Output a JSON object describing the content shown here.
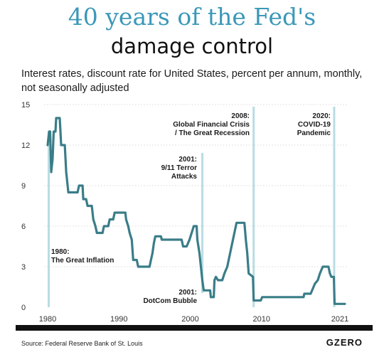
{
  "header": {
    "title_line1": "40 years of the Fed's",
    "title_line2": "damage control",
    "subtitle": "Interest rates, discount rate for United States, percent per annum, monthly, not seasonally adjusted"
  },
  "footer": {
    "source": "Source: Federal Reserve Bank of St. Louis",
    "logo": "GZERO"
  },
  "colors": {
    "line": "#3a7d88",
    "annotation_line": "#b9dde2",
    "grid": "#d9d9d9",
    "title": "#3b98b8"
  },
  "chart_data": {
    "type": "line",
    "xlim": [
      1980,
      2022
    ],
    "ylim": [
      0,
      15
    ],
    "x_ticks": [
      1980,
      1990,
      2000,
      2010,
      2021
    ],
    "y_ticks": [
      0,
      3,
      6,
      9,
      12,
      15
    ],
    "grid": "horizontal dotted",
    "series": [
      {
        "points": [
          [
            1980.0,
            12.0
          ],
          [
            1980.2,
            13.0
          ],
          [
            1980.35,
            13.0
          ],
          [
            1980.5,
            10.0
          ],
          [
            1980.7,
            11.0
          ],
          [
            1980.85,
            13.0
          ],
          [
            1981.1,
            13.0
          ],
          [
            1981.2,
            14.0
          ],
          [
            1981.7,
            14.0
          ],
          [
            1981.9,
            12.0
          ],
          [
            1982.4,
            12.0
          ],
          [
            1982.6,
            10.0
          ],
          [
            1982.9,
            8.5
          ],
          [
            1984.2,
            8.5
          ],
          [
            1984.4,
            9.0
          ],
          [
            1984.9,
            9.0
          ],
          [
            1985.0,
            8.0
          ],
          [
            1985.4,
            8.0
          ],
          [
            1985.6,
            7.5
          ],
          [
            1986.2,
            7.5
          ],
          [
            1986.4,
            6.5
          ],
          [
            1986.7,
            6.0
          ],
          [
            1986.9,
            5.5
          ],
          [
            1987.7,
            5.5
          ],
          [
            1987.9,
            6.0
          ],
          [
            1988.5,
            6.0
          ],
          [
            1988.7,
            6.5
          ],
          [
            1989.2,
            6.5
          ],
          [
            1989.4,
            7.0
          ],
          [
            1990.9,
            7.0
          ],
          [
            1991.0,
            6.5
          ],
          [
            1991.3,
            6.0
          ],
          [
            1991.5,
            5.5
          ],
          [
            1991.8,
            5.0
          ],
          [
            1992.0,
            3.5
          ],
          [
            1992.5,
            3.5
          ],
          [
            1992.7,
            3.0
          ],
          [
            1994.3,
            3.0
          ],
          [
            1994.5,
            3.5
          ],
          [
            1994.7,
            4.0
          ],
          [
            1994.9,
            4.75
          ],
          [
            1995.1,
            5.25
          ],
          [
            1995.9,
            5.25
          ],
          [
            1996.0,
            5.0
          ],
          [
            1998.8,
            5.0
          ],
          [
            1999.0,
            4.5
          ],
          [
            1999.5,
            4.5
          ],
          [
            1999.7,
            4.75
          ],
          [
            1999.9,
            5.0
          ],
          [
            2000.2,
            5.5
          ],
          [
            2000.5,
            6.0
          ],
          [
            2000.9,
            6.0
          ],
          [
            2001.0,
            5.0
          ],
          [
            2001.3,
            4.0
          ],
          [
            2001.5,
            3.0
          ],
          [
            2001.7,
            2.0
          ],
          [
            2001.9,
            1.25
          ],
          [
            2002.8,
            1.25
          ],
          [
            2002.9,
            0.75
          ],
          [
            2003.3,
            0.75
          ],
          [
            2003.4,
            2.0
          ],
          [
            2003.6,
            2.25
          ],
          [
            2003.9,
            2.0
          ],
          [
            2004.5,
            2.0
          ],
          [
            2004.8,
            2.5
          ],
          [
            2005.2,
            3.0
          ],
          [
            2005.6,
            4.0
          ],
          [
            2006.0,
            5.0
          ],
          [
            2006.5,
            6.25
          ],
          [
            2007.6,
            6.25
          ],
          [
            2007.8,
            5.0
          ],
          [
            2008.0,
            4.0
          ],
          [
            2008.2,
            2.5
          ],
          [
            2008.8,
            2.25
          ],
          [
            2008.9,
            0.5
          ],
          [
            2009.9,
            0.5
          ],
          [
            2010.1,
            0.75
          ],
          [
            2015.9,
            0.75
          ],
          [
            2016.0,
            1.0
          ],
          [
            2016.9,
            1.0
          ],
          [
            2017.1,
            1.25
          ],
          [
            2017.5,
            1.75
          ],
          [
            2017.9,
            2.0
          ],
          [
            2018.2,
            2.5
          ],
          [
            2018.6,
            3.0
          ],
          [
            2019.4,
            3.0
          ],
          [
            2019.6,
            2.5
          ],
          [
            2019.8,
            2.25
          ],
          [
            2020.15,
            2.25
          ],
          [
            2020.25,
            0.25
          ],
          [
            2021.7,
            0.25
          ]
        ]
      }
    ],
    "annotations": [
      {
        "year": 1980.15,
        "label_lines": [
          "1980:",
          "The Great Inflation"
        ]
      },
      {
        "year": 2001.7,
        "label_lines": [
          "2001:",
          "9/11 Terror",
          "Attacks"
        ]
      },
      {
        "year": 2001.7,
        "label_lines": [
          "2001:",
          "DotCom Bubble"
        ]
      },
      {
        "year": 2008.9,
        "label_lines": [
          "2008:",
          "Global Financial Crisis",
          "/ The Great Recession"
        ]
      },
      {
        "year": 2020.2,
        "label_lines": [
          "2020:",
          "COVID-19",
          "Pandemic"
        ]
      }
    ]
  }
}
